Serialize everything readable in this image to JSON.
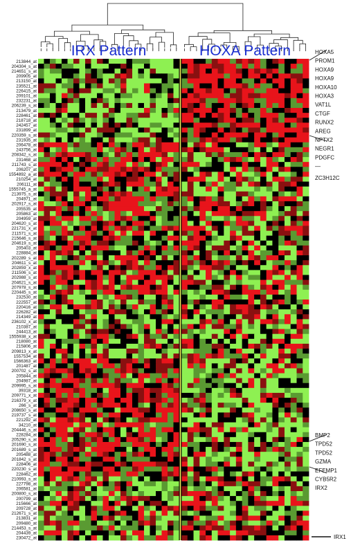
{
  "chart_data": {
    "type": "heatmap",
    "title": "",
    "color_scale": {
      "high": "#e8141b",
      "mid": "#000000",
      "low": "#8ef052",
      "mid_low": "#5a9a32",
      "mid_high": "#8a1010"
    },
    "divider_color": "#f2f25a",
    "groups": [
      {
        "name": "IRX Pattern",
        "n_samples": 24
      },
      {
        "name": "HOXA Pattern",
        "n_samples": 21
      }
    ],
    "row_labels": [
      "213844_at",
      "204304_s_at",
      "214651_s_at",
      "209905_at",
      "213150_at",
      "235521_at",
      "226415_at",
      "209101_at",
      "232231_at",
      "206239_s_at",
      "213479_at",
      "228461_at",
      "218718_at",
      "242457_at",
      "231899_at",
      "220359_s_at",
      "231935_at",
      "206478_at",
      "243756_at",
      "208342_s_at",
      "231468_at",
      "211743_s_at",
      "206207_at",
      "1554892_a_at",
      "210254_at",
      "206111_at",
      "1555745_a_at",
      "213975_s_at",
      "204971_at",
      "202917_s_at",
      "205535_at",
      "205863_at",
      "204959_at",
      "204620_s_at",
      "221731_x_at",
      "211571_s_at",
      "215646_s_at",
      "204619_s_at",
      "205403_at",
      "228884_at",
      "202289_s_at",
      "204611_s_at",
      "202859_x_at",
      "211506_s_at",
      "202988_s_at",
      "204621_s_at",
      "207978_s_at",
      "220445_s_at",
      "232530_at",
      "222557_at",
      "220416_at",
      "226282_at",
      "214349_at",
      "236102_x_at",
      "210387_at",
      "244413_at",
      "1555938_x_at",
      "218080_at",
      "215806_at",
      "209813_x_at",
      "1557534_at",
      "1566363_at",
      "201487_at",
      "200702_s_at",
      "205844_at",
      "204987_at",
      "209995_s_at",
      "39318_at",
      "209771_x_at",
      "216379_x_at",
      "266_s_at",
      "208650_s_at",
      "219737_s_at",
      "221292_at",
      "34210_at",
      "204446_s_at",
      "228284_at",
      "205290_s_at",
      "201690_s_at",
      "201689_s_at",
      "205488_at",
      "201842_s_at",
      "228406_at",
      "220230_s_at",
      "228462_at",
      "210993_s_at",
      "227798_at",
      "206581_at",
      "200800_s_at",
      "200799_at",
      "215666_at",
      "209728_at",
      "212671_s_at",
      "213831_at",
      "209480_at",
      "214453_s_at",
      "204439_at",
      "230472_at"
    ],
    "gene_annotations": [
      {
        "label": "HOXA5",
        "leader": "diagonal"
      },
      {
        "label": "PROM1"
      },
      {
        "label": "HOXA9"
      },
      {
        "label": "HOXA9"
      },
      {
        "label": "HOXA10"
      },
      {
        "label": "HOXA3"
      },
      {
        "label": "VAT1L"
      },
      {
        "label": "CTGF"
      },
      {
        "label": "RUNX2"
      },
      {
        "label": "AREG"
      },
      {
        "label": "NPTX2"
      },
      {
        "label": "NEGR1"
      },
      {
        "label": "PDGFC"
      },
      {
        "label": "—"
      },
      {
        "label": "ZC3H12C",
        "leader": "diagonal"
      },
      {
        "label": "BMP2",
        "leader": "diagonal"
      },
      {
        "label": "TPD52"
      },
      {
        "label": "TPD52"
      },
      {
        "label": "GZMA"
      },
      {
        "label": "EFEMP1"
      },
      {
        "label": "CYB5R2"
      },
      {
        "label": "IRX2",
        "leader": "diagonal"
      },
      {
        "label": "IRX1",
        "leader": "horizontal"
      }
    ],
    "dendrogram": "hierarchical clustering of samples (top)",
    "legend": "none"
  }
}
